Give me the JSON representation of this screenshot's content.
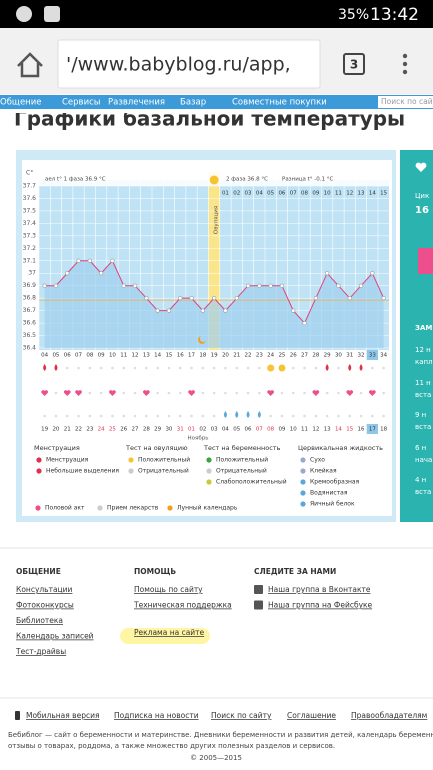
{
  "status_bar": {
    "battery": "35%",
    "time": "13:42"
  },
  "browser": {
    "url": "'/www.babyblog.ru/app,",
    "tabs": "3"
  },
  "nav": {
    "items": [
      "Общение",
      "Сервисы",
      "Развлечения",
      "Базар",
      "Совместные покупки"
    ],
    "search": "Поиск по сайт"
  },
  "page_title": "Графики базальной температуры",
  "chart": {
    "unit": "C°",
    "phase1": "аел t° 1 фаза 36.9 °C",
    "phase2": "2 фаза 36.8 °C",
    "diff": "Разница t° -0.1 °C",
    "ovulation": "Овуляция",
    "ylim": [
      36.4,
      37.7
    ],
    "yticks": [
      37.7,
      37.6,
      37.5,
      37.4,
      37.3,
      37.2,
      37.1,
      37.0,
      36.9,
      36.8,
      36.7,
      36.6,
      36.5,
      36.4
    ],
    "temps": [
      36.9,
      36.9,
      37.0,
      37.1,
      37.1,
      37.0,
      37.1,
      36.9,
      36.9,
      36.8,
      36.7,
      36.7,
      36.8,
      36.8,
      36.7,
      36.8,
      36.7,
      36.8,
      36.9,
      36.9,
      36.9,
      36.9,
      36.7,
      36.6,
      36.8,
      37.0,
      36.9,
      36.8,
      36.9,
      37.0,
      36.8
    ],
    "phase2_days": [
      "01",
      "02",
      "03",
      "04",
      "05",
      "06",
      "07",
      "08",
      "09",
      "10",
      "11",
      "12",
      "13",
      "14",
      "15"
    ],
    "cycle_days": [
      "04",
      "05",
      "06",
      "07",
      "08",
      "09",
      "10",
      "11",
      "12",
      "13",
      "14",
      "15",
      "16",
      "17",
      "18",
      "19",
      "20",
      "21",
      "22",
      "23",
      "24",
      "25",
      "26",
      "27",
      "28",
      "29",
      "30",
      "31",
      "32",
      "33",
      "34"
    ],
    "dates": [
      "19",
      "20",
      "21",
      "22",
      "23",
      "24",
      "25",
      "26",
      "27",
      "28",
      "29",
      "30",
      "31",
      "01",
      "02",
      "03",
      "04",
      "05",
      "06",
      "07",
      "08",
      "09",
      "10",
      "11",
      "12",
      "13",
      "14",
      "15",
      "16",
      "17",
      "18"
    ],
    "month": "Ноябрь"
  },
  "legend": {
    "groups": [
      {
        "title": "Менструация",
        "items": [
          "Менструация",
          "Небольшие выделения"
        ]
      },
      {
        "title": "Тест на овуляцию",
        "items": [
          "Положительный",
          "Отрицательный"
        ]
      },
      {
        "title": "Тест на беременность",
        "items": [
          "Положительный",
          "Отрицательный",
          "Слабоположительный"
        ]
      },
      {
        "title": "Цервикальная жидкость",
        "items": [
          "Сухо",
          "Клейкая",
          "Кремообразная",
          "Водянистая",
          "Яичный белок"
        ]
      }
    ],
    "extra": [
      "Половой акт",
      "Прием лекарств",
      "Лунный календарь"
    ]
  },
  "sidebar": [
    "Цик",
    "16 С",
    "ЗАМ",
    "12 н",
    "капл",
    "11 н",
    "вста",
    "9 н",
    "вста",
    "6 н",
    "нача",
    "4 н",
    "вста"
  ],
  "footer": {
    "columns": [
      {
        "title": "ОБЩЕНИЕ",
        "links": [
          "Консультации",
          "Фотоконкурсы",
          "Библиотека",
          "Календарь записей",
          "Тест-драйвы"
        ]
      },
      {
        "title": "ПОМОЩЬ",
        "links": [
          "Помощь по сайту",
          "Техническая поддержка",
          "Реклама на сайте"
        ]
      },
      {
        "title": "СЛЕДИТЕ ЗА НАМИ",
        "links": [
          "Наша группа в Вконтакте",
          "Наша группа на Фейсбуке"
        ]
      }
    ],
    "bottom_links": [
      "Мобильная версия",
      "Подписка на новости",
      "Поиск по сайту",
      "Соглашение",
      "Правообладателям"
    ],
    "about": [
      "Бебиблог — сайт о беременности и материнстве. Дневники беременности и развития детей, календарь беременност",
      "отзывы о товарах, роддома, а также множество других полезных разделов и сервисов."
    ],
    "copyright": "© 2005—2015"
  }
}
